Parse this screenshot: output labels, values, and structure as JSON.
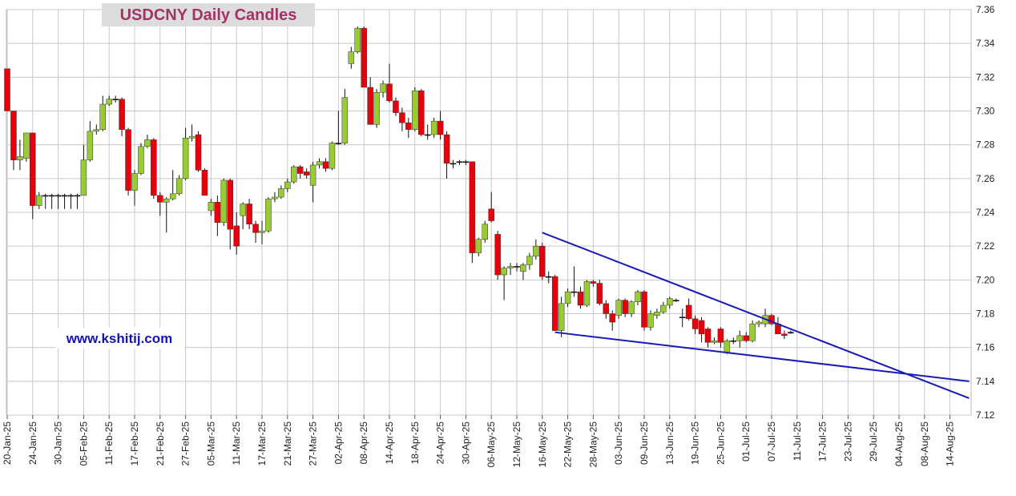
{
  "chart_data": {
    "type": "candlestick",
    "title": "USDCNY Daily Candles",
    "watermark": "www.kshitij.com",
    "categories": [
      "20-Jan-25",
      null,
      null,
      null,
      "24-Jan-25",
      null,
      null,
      null,
      "30-Jan-25",
      null,
      null,
      null,
      "05-Feb-25",
      null,
      null,
      null,
      "11-Feb-25",
      null,
      null,
      null,
      "17-Feb-25",
      null,
      null,
      null,
      "21-Feb-25",
      null,
      null,
      null,
      "27-Feb-25",
      null,
      null,
      null,
      "05-Mar-25",
      null,
      null,
      null,
      "11-Mar-25",
      null,
      null,
      null,
      "17-Mar-25",
      null,
      null,
      null,
      "21-Mar-25",
      null,
      null,
      null,
      "27-Mar-25",
      null,
      null,
      null,
      "02-Apr-25",
      null,
      null,
      null,
      "08-Apr-25",
      null,
      null,
      null,
      "14-Apr-25",
      null,
      null,
      null,
      "18-Apr-25",
      null,
      null,
      null,
      "24-Apr-25",
      null,
      null,
      null,
      "30-Apr-25",
      null,
      null,
      null,
      "06-May-25",
      null,
      null,
      null,
      "12-May-25",
      null,
      null,
      null,
      "16-May-25",
      null,
      null,
      null,
      "22-May-25",
      null,
      null,
      null,
      "28-May-25",
      null,
      null,
      null,
      "03-Jun-25",
      null,
      null,
      null,
      "09-Jun-25",
      null,
      null,
      null,
      "13-Jun-25",
      null,
      null,
      null,
      "19-Jun-25",
      null,
      null,
      null,
      "25-Jun-25",
      null,
      null,
      null,
      "01-Jul-25",
      null,
      null,
      null,
      "07-Jul-25",
      null,
      null,
      null,
      "11-Jul-25",
      null,
      null,
      null,
      "17-Jul-25",
      null,
      null,
      null,
      "23-Jul-25",
      null,
      null,
      null,
      "29-Jul-25",
      null,
      null,
      null,
      "04-Aug-25",
      null,
      null,
      null,
      "08-Aug-25",
      null,
      null,
      null,
      "14-Aug-25",
      null,
      null,
      null
    ],
    "open": [
      7.325,
      7.3,
      7.271,
      7.272,
      7.287,
      7.244,
      7.25,
      7.25,
      7.25,
      7.25,
      7.25,
      7.25,
      7.25,
      7.271,
      7.288,
      7.289,
      7.304,
      7.307,
      7.307,
      7.289,
      7.253,
      7.263,
      7.279,
      7.283,
      7.25,
      7.246,
      7.248,
      7.251,
      7.26,
      7.284,
      7.286,
      7.265,
      7.241,
      7.246,
      7.234,
      7.259,
      7.232,
      7.238,
      7.245,
      7.233,
      7.228,
      7.229,
      7.248,
      7.249,
      7.254,
      7.258,
      7.267,
      7.264,
      7.256,
      7.268,
      7.27,
      7.266,
      7.281,
      7.281,
      7.328,
      7.335,
      7.349,
      7.314,
      7.292,
      7.311,
      7.316,
      7.306,
      7.299,
      7.293,
      7.289,
      7.312,
      7.286,
      7.286,
      7.294,
      7.286,
      7.269,
      7.27,
      7.27,
      7.27,
      7.216,
      7.224,
      7.242,
      7.227,
      7.203,
      7.207,
      7.208,
      7.205,
      7.209,
      7.214,
      7.22,
      7.202,
      7.202,
      7.17,
      7.186,
      7.193,
      7.193,
      7.185,
      7.199,
      7.198,
      7.186,
      7.18,
      7.179,
      7.188,
      7.18,
      7.187,
      7.193,
      7.172,
      7.179,
      7.181,
      7.185,
      7.188,
      7.178,
      7.185,
      7.177,
      7.176,
      7.171,
      7.163,
      7.171,
      7.157,
      7.164,
      7.164,
      7.167,
      7.164,
      7.174,
      7.174,
      7.179,
      7.174,
      7.168,
      7.169,
      null,
      null,
      null,
      null,
      null,
      null,
      null,
      null,
      null,
      null,
      null,
      null,
      null,
      null,
      null,
      null,
      null,
      null,
      null,
      null,
      null,
      null,
      null,
      null,
      null,
      null,
      null,
      null
    ],
    "high": [
      7.325,
      7.3,
      7.283,
      7.287,
      7.287,
      7.252,
      7.251,
      7.251,
      7.251,
      7.251,
      7.251,
      7.251,
      7.28,
      7.294,
      7.292,
      7.309,
      7.309,
      7.309,
      7.308,
      7.29,
      7.265,
      7.281,
      7.286,
      7.284,
      7.252,
      7.249,
      7.265,
      7.262,
      7.29,
      7.292,
      7.288,
      7.266,
      7.248,
      7.25,
      7.26,
      7.26,
      7.24,
      7.246,
      7.248,
      7.235,
      7.235,
      7.249,
      7.252,
      7.256,
      7.26,
      7.268,
      7.268,
      7.266,
      7.27,
      7.272,
      7.272,
      7.282,
      7.3,
      7.313,
      7.338,
      7.35,
      7.35,
      7.32,
      7.313,
      7.318,
      7.328,
      7.308,
      7.302,
      7.296,
      7.314,
      7.313,
      7.292,
      7.296,
      7.3,
      7.288,
      7.271,
      7.271,
      7.271,
      7.27,
      7.225,
      7.235,
      7.252,
      7.229,
      7.208,
      7.21,
      7.21,
      7.21,
      7.216,
      7.224,
      7.222,
      7.205,
      7.203,
      7.19,
      7.195,
      7.208,
      7.196,
      7.2,
      7.2,
      7.2,
      7.188,
      7.182,
      7.189,
      7.189,
      7.188,
      7.194,
      7.194,
      7.182,
      7.183,
      7.187,
      7.19,
      7.189,
      7.183,
      7.189,
      7.179,
      7.178,
      7.172,
      7.166,
      7.172,
      7.165,
      7.166,
      7.17,
      7.169,
      7.176,
      7.176,
      7.183,
      7.18,
      7.178,
      7.17,
      7.17,
      null,
      null,
      null,
      null,
      null,
      null,
      null,
      null,
      null,
      null,
      null,
      null,
      null,
      null,
      null,
      null,
      null,
      null,
      null,
      null,
      null,
      null,
      null,
      null,
      null,
      null,
      null,
      null
    ],
    "low": [
      7.3,
      7.265,
      7.265,
      7.27,
      7.236,
      7.242,
      7.242,
      7.242,
      7.242,
      7.242,
      7.242,
      7.242,
      7.25,
      7.27,
      7.286,
      7.288,
      7.303,
      7.305,
      7.285,
      7.25,
      7.244,
      7.262,
      7.278,
      7.248,
      7.238,
      7.228,
      7.247,
      7.25,
      7.259,
      7.282,
      7.264,
      7.25,
      7.238,
      7.226,
      7.232,
      7.218,
      7.215,
      7.23,
      7.23,
      7.222,
      7.221,
      7.228,
      7.246,
      7.248,
      7.252,
      7.257,
      7.26,
      7.26,
      7.246,
      7.266,
      7.264,
      7.265,
      7.28,
      7.28,
      7.325,
      7.334,
      7.314,
      7.292,
      7.29,
      7.308,
      7.305,
      7.297,
      7.288,
      7.284,
      7.288,
      7.285,
      7.283,
      7.284,
      7.283,
      7.26,
      7.266,
      7.268,
      7.268,
      7.21,
      7.214,
      7.222,
      7.234,
      7.2,
      7.188,
      7.203,
      7.205,
      7.2,
      7.206,
      7.212,
      7.2,
      7.198,
      7.17,
      7.166,
      7.184,
      7.19,
      7.183,
      7.184,
      7.196,
      7.185,
      7.177,
      7.17,
      7.177,
      7.178,
      7.178,
      7.185,
      7.17,
      7.17,
      7.177,
      7.18,
      7.183,
      7.187,
      7.172,
      7.176,
      7.168,
      7.163,
      7.16,
      7.162,
      7.16,
      7.156,
      7.162,
      7.16,
      7.163,
      7.163,
      7.172,
      7.172,
      7.173,
      7.168,
      7.165,
      7.168,
      null,
      null,
      null,
      null,
      null,
      null,
      null,
      null,
      null,
      null,
      null,
      null,
      null,
      null,
      null,
      null,
      null,
      null,
      null,
      null,
      null,
      null,
      null,
      null,
      null,
      null,
      null,
      null
    ],
    "close": [
      7.3,
      7.271,
      7.273,
      7.287,
      7.244,
      7.25,
      7.25,
      7.25,
      7.25,
      7.25,
      7.25,
      7.25,
      7.271,
      7.288,
      7.289,
      7.304,
      7.307,
      7.307,
      7.289,
      7.253,
      7.263,
      7.279,
      7.283,
      7.25,
      7.246,
      7.248,
      7.251,
      7.26,
      7.284,
      7.285,
      7.265,
      7.25,
      7.246,
      7.234,
      7.259,
      7.23,
      7.22,
      7.245,
      7.233,
      7.228,
      7.229,
      7.248,
      7.249,
      7.254,
      7.258,
      7.267,
      7.263,
      7.262,
      7.268,
      7.27,
      7.266,
      7.281,
      7.281,
      7.308,
      7.335,
      7.349,
      7.314,
      7.292,
      7.311,
      7.316,
      7.306,
      7.299,
      7.293,
      7.289,
      7.312,
      7.286,
      7.286,
      7.294,
      7.286,
      7.269,
      7.269,
      7.27,
      7.27,
      7.216,
      7.224,
      7.233,
      7.235,
      7.203,
      7.207,
      7.208,
      7.208,
      7.209,
      7.214,
      7.22,
      7.202,
      7.202,
      7.17,
      7.186,
      7.193,
      7.193,
      7.185,
      7.199,
      7.198,
      7.186,
      7.18,
      7.175,
      7.188,
      7.18,
      7.187,
      7.193,
      7.172,
      7.18,
      7.181,
      7.185,
      7.189,
      7.188,
      7.178,
      7.177,
      7.171,
      7.168,
      7.163,
      7.164,
      7.163,
      7.164,
      7.164,
      7.167,
      7.164,
      7.174,
      7.175,
      7.179,
      7.174,
      7.168,
      7.167,
      7.169,
      null,
      null,
      null,
      null,
      null,
      null,
      null,
      null,
      null,
      null,
      null,
      null,
      null,
      null,
      null,
      null,
      null,
      null,
      null,
      null,
      null,
      null,
      null,
      null,
      null,
      null,
      null,
      null
    ],
    "up_color": "#99cc33",
    "down_color": "#e8000b",
    "trendlines": [
      {
        "x": [
          84,
          151
        ],
        "y": [
          7.228,
          7.13
        ],
        "color": "#1a1ab8"
      },
      {
        "x": [
          86,
          151
        ],
        "y": [
          7.169,
          7.14
        ],
        "color": "#1a1ab8"
      }
    ],
    "ylim": [
      7.12,
      7.36
    ],
    "yticks": [
      7.12,
      7.14,
      7.16,
      7.18,
      {
        "value": 7.2,
        "label": "7.20"
      },
      7.22,
      7.24,
      7.26,
      7.28,
      {
        "value": 7.3,
        "label": "7.30"
      },
      7.32,
      7.34,
      7.36
    ],
    "grid": true
  }
}
